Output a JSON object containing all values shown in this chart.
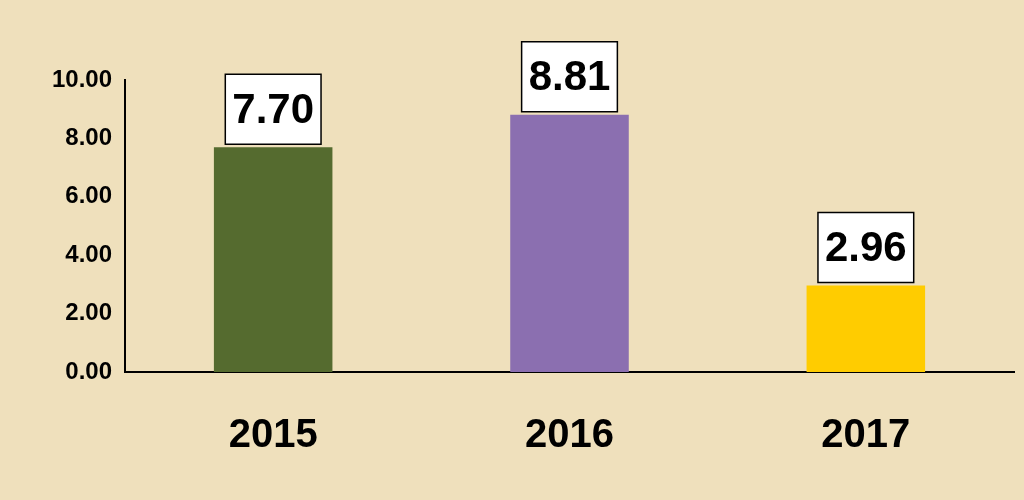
{
  "chart_data": {
    "type": "bar",
    "categories": [
      "2015",
      "2016",
      "2017"
    ],
    "values": [
      7.7,
      8.81,
      2.96
    ],
    "colors": [
      "#556b2f",
      "#8b6fb0",
      "#ffcc00"
    ],
    "value_labels": [
      "7.70",
      "8.81",
      "2.96"
    ],
    "ylim": [
      0,
      10
    ],
    "yticks": [
      {
        "value": 0,
        "label": "0.00"
      },
      {
        "value": 2,
        "label": "2.00"
      },
      {
        "value": 4,
        "label": "4.00"
      },
      {
        "value": 6,
        "label": "6.00"
      },
      {
        "value": 8,
        "label": "8.00"
      },
      {
        "value": 10,
        "label": "10.00"
      }
    ]
  }
}
